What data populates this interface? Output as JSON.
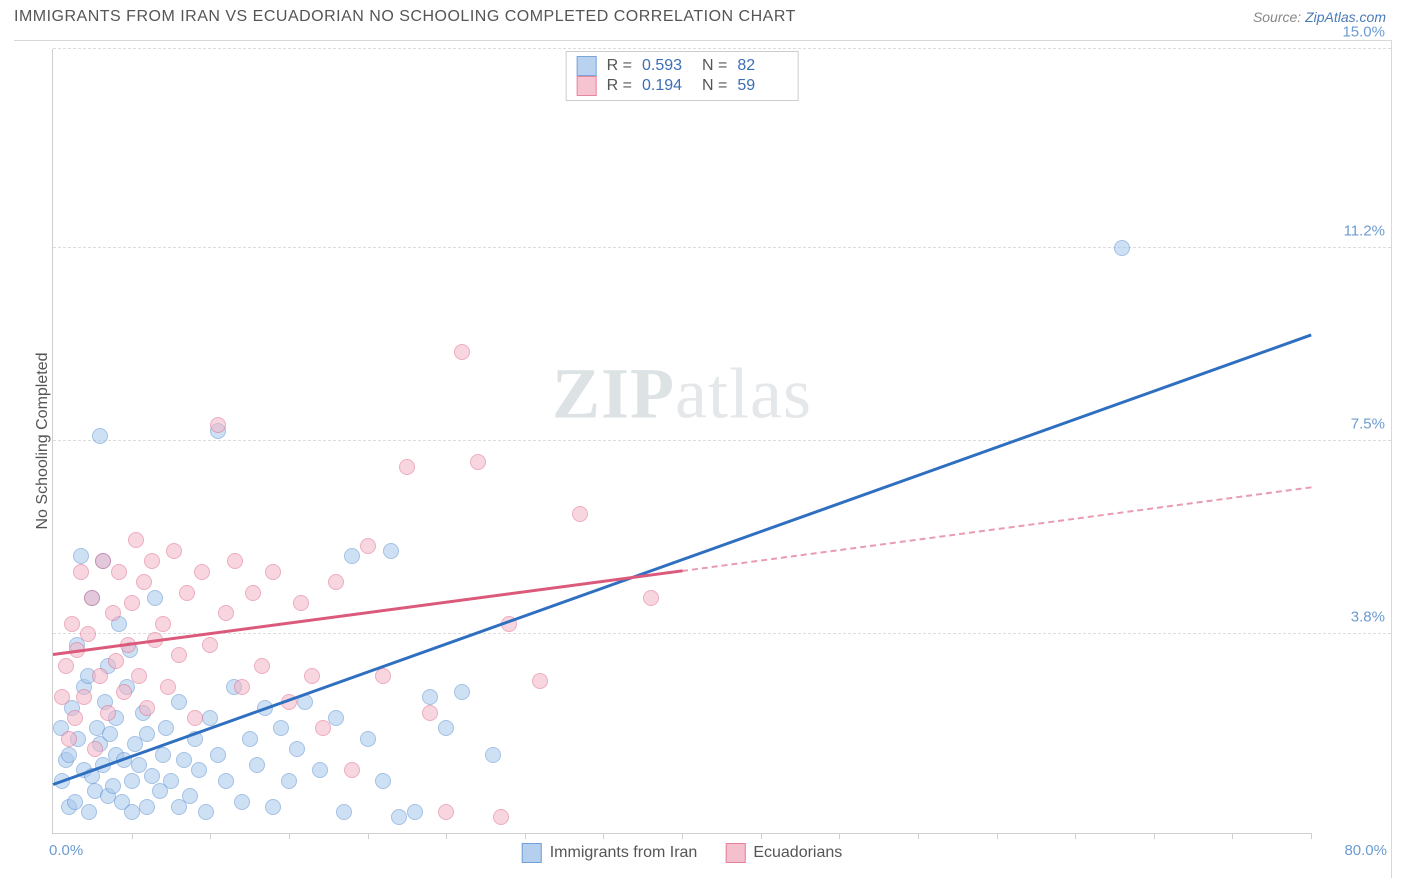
{
  "header": {
    "title": "IMMIGRANTS FROM IRAN VS ECUADORIAN NO SCHOOLING COMPLETED CORRELATION CHART",
    "source_prefix": "Source: ",
    "source_name": "ZipAtlas.com"
  },
  "watermark": {
    "bold": "ZIP",
    "rest": "atlas"
  },
  "chart": {
    "type": "scatter",
    "background_color": "#ffffff",
    "grid_color": "#dcdcdc",
    "axis_color": "#cfcfcf",
    "yaxis_title": "No Schooling Completed",
    "xlim": [
      0,
      80
    ],
    "ylim": [
      0,
      15
    ],
    "xticks": [
      0,
      5,
      10,
      15,
      20,
      25,
      30,
      35,
      40,
      45,
      50,
      55,
      60,
      65,
      70,
      75,
      80
    ],
    "xlabel_min": "0.0%",
    "xlabel_max": "80.0%",
    "ytick_labels": [
      {
        "value": 3.8,
        "label": "3.8%"
      },
      {
        "value": 7.5,
        "label": "7.5%"
      },
      {
        "value": 11.2,
        "label": "11.2%"
      },
      {
        "value": 15.0,
        "label": "15.0%"
      }
    ],
    "marker_radius": 8,
    "marker_border_width": 1.5,
    "series": [
      {
        "name": "Immigrants from Iran",
        "fill_color": "#a7c8ec",
        "fill_opacity": 0.55,
        "border_color": "#5a8fd0",
        "r_value": "0.593",
        "n_value": "82",
        "trend": {
          "x1": 0,
          "y1": 0.9,
          "x2": 80,
          "y2": 9.5,
          "color": "#2f6fc0",
          "dash_after_x": 80
        },
        "points": [
          [
            0.5,
            2.0
          ],
          [
            0.6,
            1.0
          ],
          [
            0.8,
            1.4
          ],
          [
            1.0,
            1.5
          ],
          [
            1.0,
            0.5
          ],
          [
            1.2,
            2.4
          ],
          [
            1.4,
            0.6
          ],
          [
            1.5,
            3.6
          ],
          [
            1.6,
            1.8
          ],
          [
            1.8,
            5.3
          ],
          [
            2.0,
            1.2
          ],
          [
            2.0,
            2.8
          ],
          [
            2.2,
            3.0
          ],
          [
            2.3,
            0.4
          ],
          [
            2.5,
            1.1
          ],
          [
            2.5,
            4.5
          ],
          [
            2.7,
            0.8
          ],
          [
            2.8,
            2.0
          ],
          [
            3.0,
            7.6
          ],
          [
            3.0,
            1.7
          ],
          [
            3.2,
            1.3
          ],
          [
            3.3,
            2.5
          ],
          [
            3.5,
            0.7
          ],
          [
            3.5,
            3.2
          ],
          [
            3.6,
            1.9
          ],
          [
            3.8,
            0.9
          ],
          [
            4.0,
            1.5
          ],
          [
            4.0,
            2.2
          ],
          [
            4.2,
            4.0
          ],
          [
            4.4,
            0.6
          ],
          [
            4.5,
            1.4
          ],
          [
            4.7,
            2.8
          ],
          [
            5.0,
            1.0
          ],
          [
            5.0,
            0.4
          ],
          [
            5.2,
            1.7
          ],
          [
            5.5,
            1.3
          ],
          [
            5.7,
            2.3
          ],
          [
            6.0,
            0.5
          ],
          [
            6.0,
            1.9
          ],
          [
            6.3,
            1.1
          ],
          [
            6.5,
            4.5
          ],
          [
            6.8,
            0.8
          ],
          [
            7.0,
            1.5
          ],
          [
            7.2,
            2.0
          ],
          [
            7.5,
            1.0
          ],
          [
            8.0,
            0.5
          ],
          [
            8.0,
            2.5
          ],
          [
            8.3,
            1.4
          ],
          [
            8.7,
            0.7
          ],
          [
            9.0,
            1.8
          ],
          [
            9.3,
            1.2
          ],
          [
            9.7,
            0.4
          ],
          [
            10.0,
            2.2
          ],
          [
            10.5,
            1.5
          ],
          [
            10.5,
            7.7
          ],
          [
            11.0,
            1.0
          ],
          [
            11.5,
            2.8
          ],
          [
            12.0,
            0.6
          ],
          [
            12.5,
            1.8
          ],
          [
            13.0,
            1.3
          ],
          [
            13.5,
            2.4
          ],
          [
            14.0,
            0.5
          ],
          [
            14.5,
            2.0
          ],
          [
            15.0,
            1.0
          ],
          [
            15.5,
            1.6
          ],
          [
            16.0,
            2.5
          ],
          [
            17.0,
            1.2
          ],
          [
            18.0,
            2.2
          ],
          [
            18.5,
            0.4
          ],
          [
            19.0,
            5.3
          ],
          [
            20.0,
            1.8
          ],
          [
            21.0,
            1.0
          ],
          [
            21.5,
            5.4
          ],
          [
            22.0,
            0.3
          ],
          [
            23.0,
            0.4
          ],
          [
            24.0,
            2.6
          ],
          [
            25.0,
            2.0
          ],
          [
            26.0,
            2.7
          ],
          [
            28.0,
            1.5
          ],
          [
            68.0,
            11.2
          ],
          [
            3.2,
            5.2
          ],
          [
            4.9,
            3.5
          ]
        ]
      },
      {
        "name": "Ecuadorians",
        "fill_color": "#f3b6c5",
        "fill_opacity": 0.55,
        "border_color": "#e06a8a",
        "r_value": "0.194",
        "n_value": "59",
        "trend": {
          "x1": 0,
          "y1": 3.4,
          "x2": 80,
          "y2": 6.6,
          "color": "#db5a7c",
          "dash_after_x": 40
        },
        "points": [
          [
            0.6,
            2.6
          ],
          [
            0.8,
            3.2
          ],
          [
            1.0,
            1.8
          ],
          [
            1.2,
            4.0
          ],
          [
            1.4,
            2.2
          ],
          [
            1.5,
            3.5
          ],
          [
            1.8,
            5.0
          ],
          [
            2.0,
            2.6
          ],
          [
            2.2,
            3.8
          ],
          [
            2.5,
            4.5
          ],
          [
            2.7,
            1.6
          ],
          [
            3.0,
            3.0
          ],
          [
            3.2,
            5.2
          ],
          [
            3.5,
            2.3
          ],
          [
            3.8,
            4.2
          ],
          [
            4.0,
            3.3
          ],
          [
            4.2,
            5.0
          ],
          [
            4.5,
            2.7
          ],
          [
            4.8,
            3.6
          ],
          [
            5.0,
            4.4
          ],
          [
            5.3,
            5.6
          ],
          [
            5.5,
            3.0
          ],
          [
            5.8,
            4.8
          ],
          [
            6.0,
            2.4
          ],
          [
            6.3,
            5.2
          ],
          [
            6.5,
            3.7
          ],
          [
            7.0,
            4.0
          ],
          [
            7.3,
            2.8
          ],
          [
            7.7,
            5.4
          ],
          [
            8.0,
            3.4
          ],
          [
            8.5,
            4.6
          ],
          [
            9.0,
            2.2
          ],
          [
            9.5,
            5.0
          ],
          [
            10.0,
            3.6
          ],
          [
            10.5,
            7.8
          ],
          [
            11.0,
            4.2
          ],
          [
            11.6,
            5.2
          ],
          [
            12.0,
            2.8
          ],
          [
            12.7,
            4.6
          ],
          [
            13.3,
            3.2
          ],
          [
            14.0,
            5.0
          ],
          [
            15.0,
            2.5
          ],
          [
            15.8,
            4.4
          ],
          [
            16.5,
            3.0
          ],
          [
            17.2,
            2.0
          ],
          [
            18.0,
            4.8
          ],
          [
            19.0,
            1.2
          ],
          [
            20.0,
            5.5
          ],
          [
            21.0,
            3.0
          ],
          [
            22.5,
            7.0
          ],
          [
            24.0,
            2.3
          ],
          [
            25.0,
            0.4
          ],
          [
            26.0,
            9.2
          ],
          [
            27.0,
            7.1
          ],
          [
            29.0,
            4.0
          ],
          [
            31.0,
            2.9
          ],
          [
            33.5,
            6.1
          ],
          [
            38.0,
            4.5
          ],
          [
            28.5,
            0.3
          ]
        ]
      }
    ],
    "legend_bottom": [
      {
        "label": "Immigrants from Iran",
        "fill": "#a7c8ec",
        "border": "#5a8fd0"
      },
      {
        "label": "Ecuadorians",
        "fill": "#f3b6c5",
        "border": "#e06a8a"
      }
    ]
  }
}
